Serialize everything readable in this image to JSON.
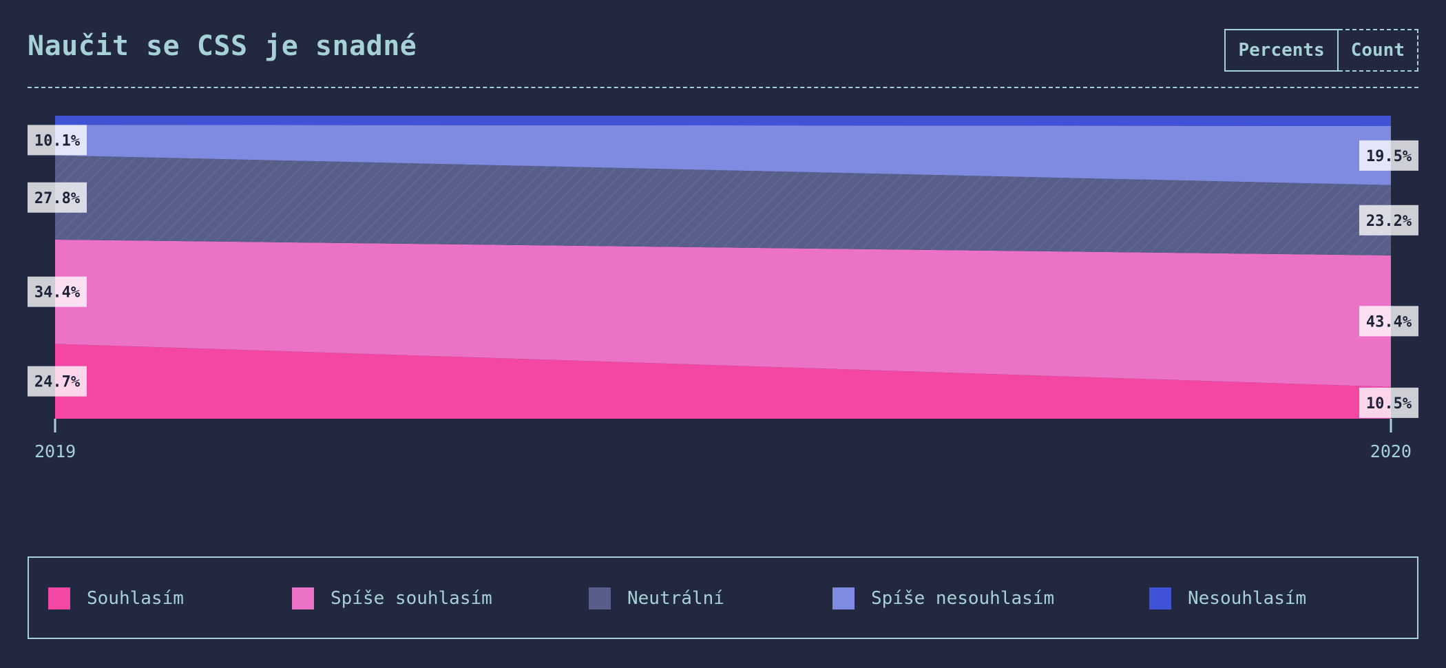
{
  "chart_data": {
    "type": "area",
    "title": "Naučit se CSS je snadné",
    "x": [
      "2019",
      "2020"
    ],
    "stacking": "percent",
    "series": [
      {
        "name": "Souhlasím",
        "values": [
          24.7,
          10.5
        ],
        "color": "#f347a3"
      },
      {
        "name": "Spíše souhlasím",
        "values": [
          34.4,
          43.4
        ],
        "color": "#ec72c8"
      },
      {
        "name": "Neutrální",
        "values": [
          27.8,
          23.2
        ],
        "color": "#585e8a"
      },
      {
        "name": "Spíše nesouhlasím",
        "values": [
          10.1,
          19.5
        ],
        "color": "#7f8ae1"
      },
      {
        "name": "Nesouhlasím",
        "values": [
          3.0,
          3.4
        ],
        "color": "#4152d6"
      }
    ],
    "data_labels_shown_for": [
      "Souhlasím",
      "Spíše souhlasím",
      "Neutrální",
      "Spíše nesouhlasím"
    ],
    "ylim": [
      0,
      100
    ],
    "legend": "bottom"
  },
  "header": {
    "title": "Naučit se CSS je snadné",
    "toggle": {
      "percents_label": "Percents",
      "count_label": "Count",
      "selected": "Percents"
    }
  }
}
